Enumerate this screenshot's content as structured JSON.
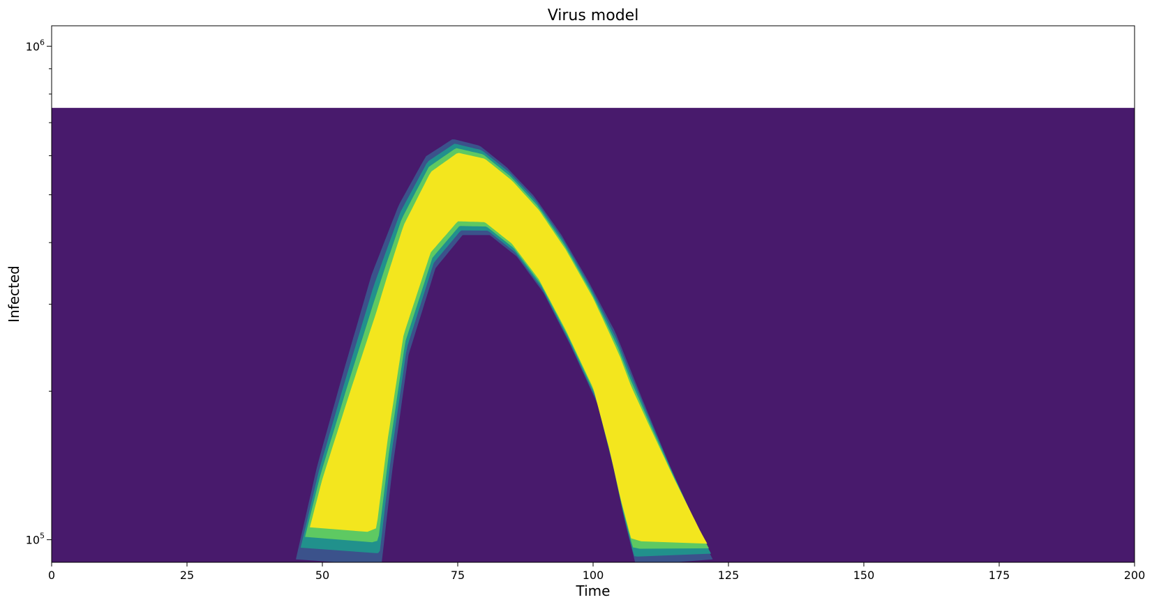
{
  "chart_data": {
    "type": "heatmap",
    "title": "Virus model",
    "xlabel": "Time",
    "ylabel": "Infected",
    "xlim": [
      0,
      200
    ],
    "ylim": [
      90000,
      1100000
    ],
    "y_scale": "log",
    "data_y_range": [
      90000,
      750000
    ],
    "x_ticks": [
      {
        "value": 0,
        "label": "0"
      },
      {
        "value": 25,
        "label": "25"
      },
      {
        "value": 50,
        "label": "50"
      },
      {
        "value": 75,
        "label": "75"
      },
      {
        "value": 100,
        "label": "100"
      },
      {
        "value": 125,
        "label": "125"
      },
      {
        "value": 150,
        "label": "150"
      },
      {
        "value": 175,
        "label": "175"
      },
      {
        "value": 200,
        "label": "200"
      }
    ],
    "y_ticks": [
      {
        "value": 100000,
        "base": "10",
        "exponent": "5"
      },
      {
        "value": 1000000,
        "base": "10",
        "exponent": "6"
      }
    ],
    "y_minor_ticks": [
      200000,
      300000,
      400000,
      500000,
      600000,
      700000,
      800000,
      900000
    ],
    "grid": false,
    "colormap": "viridis",
    "colors": {
      "background": "#481a6c",
      "band_outer": "#3b528b",
      "band_mid": "#21918c",
      "band_inner": "#5ec962",
      "band_core": "#f3e61e"
    },
    "ridge": {
      "peak_time": 75,
      "peak_infected": 560000,
      "upper_edge": [
        [
          46,
          90000
        ],
        [
          50,
          140000
        ],
        [
          55,
          220000
        ],
        [
          60,
          340000
        ],
        [
          65,
          470000
        ],
        [
          70,
          590000
        ],
        [
          75,
          640000
        ],
        [
          80,
          620000
        ],
        [
          85,
          560000
        ],
        [
          90,
          490000
        ],
        [
          95,
          410000
        ],
        [
          100,
          330000
        ],
        [
          105,
          260000
        ],
        [
          110,
          190000
        ],
        [
          115,
          140000
        ],
        [
          120,
          105000
        ],
        [
          123,
          90000
        ]
      ],
      "lower_edge": [
        [
          60,
          90000
        ],
        [
          62,
          140000
        ],
        [
          65,
          240000
        ],
        [
          70,
          360000
        ],
        [
          75,
          420000
        ],
        [
          80,
          420000
        ],
        [
          85,
          380000
        ],
        [
          90,
          320000
        ],
        [
          95,
          250000
        ],
        [
          100,
          190000
        ],
        [
          103,
          140000
        ],
        [
          105,
          110000
        ],
        [
          107,
          90000
        ]
      ]
    }
  }
}
